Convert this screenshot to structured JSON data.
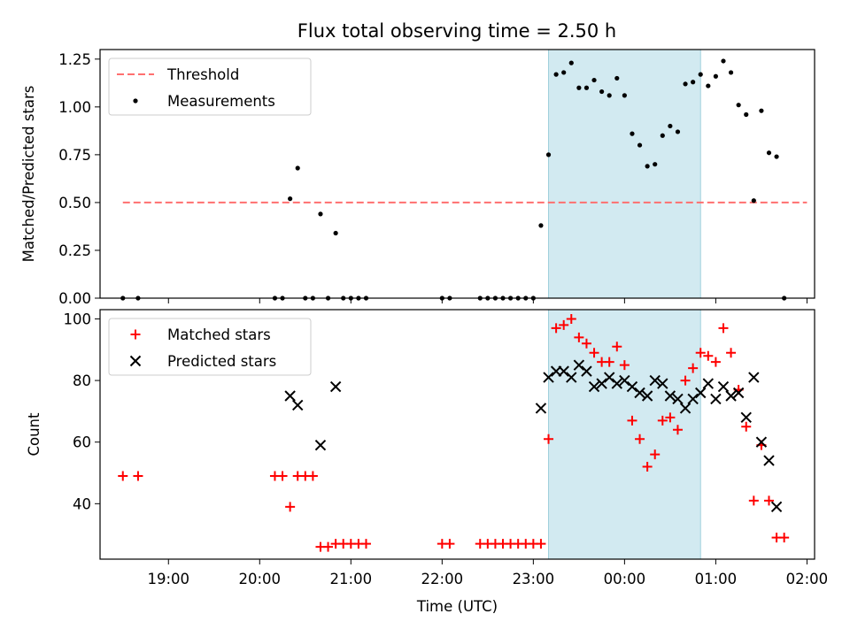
{
  "title": "Flux total observing time = 2.50 h",
  "colors": {
    "threshold": "#ff6f6f",
    "measurements": "#000000",
    "matched": "#ff0000",
    "predicted": "#000000",
    "shade": "#add8e6"
  },
  "chart_data": [
    {
      "type": "scatter",
      "ylabel": "Matched/Predicted stars",
      "xlim": [
        "18:15",
        "02:05"
      ],
      "ylim": [
        0,
        1.3
      ],
      "yticks": [
        "0.00",
        "0.25",
        "0.50",
        "0.75",
        "1.00",
        "1.25"
      ],
      "legend": {
        "position": "upper-left",
        "entries": [
          "Threshold",
          "Measurements"
        ]
      },
      "shaded_region": [
        "23:10",
        "00:50"
      ],
      "threshold": {
        "name": "Threshold",
        "y": 0.5,
        "x_range": [
          "18:30",
          "02:00"
        ]
      },
      "series": [
        {
          "name": "Measurements",
          "points": [
            [
              "18:30",
              0
            ],
            [
              "18:40",
              0
            ],
            [
              "20:10",
              0
            ],
            [
              "20:15",
              0
            ],
            [
              "20:20",
              0.52
            ],
            [
              "20:25",
              0.68
            ],
            [
              "20:30",
              0
            ],
            [
              "20:35",
              0
            ],
            [
              "20:40",
              0.44
            ],
            [
              "20:45",
              0
            ],
            [
              "20:50",
              0.34
            ],
            [
              "20:55",
              0
            ],
            [
              "21:00",
              0
            ],
            [
              "21:05",
              0
            ],
            [
              "21:10",
              0
            ],
            [
              "22:00",
              0
            ],
            [
              "22:05",
              0
            ],
            [
              "22:25",
              0
            ],
            [
              "22:30",
              0
            ],
            [
              "22:35",
              0
            ],
            [
              "22:40",
              0
            ],
            [
              "22:45",
              0
            ],
            [
              "22:50",
              0
            ],
            [
              "22:55",
              0
            ],
            [
              "23:00",
              0
            ],
            [
              "23:05",
              0.38
            ],
            [
              "23:10",
              0.75
            ],
            [
              "23:15",
              1.17
            ],
            [
              "23:20",
              1.18
            ],
            [
              "23:25",
              1.23
            ],
            [
              "23:30",
              1.1
            ],
            [
              "23:35",
              1.1
            ],
            [
              "23:40",
              1.14
            ],
            [
              "23:45",
              1.08
            ],
            [
              "23:50",
              1.06
            ],
            [
              "23:55",
              1.15
            ],
            [
              "00:00",
              1.06
            ],
            [
              "00:05",
              0.86
            ],
            [
              "00:10",
              0.8
            ],
            [
              "00:15",
              0.69
            ],
            [
              "00:20",
              0.7
            ],
            [
              "00:25",
              0.85
            ],
            [
              "00:30",
              0.9
            ],
            [
              "00:35",
              0.87
            ],
            [
              "00:40",
              1.12
            ],
            [
              "00:45",
              1.13
            ],
            [
              "00:50",
              1.17
            ],
            [
              "00:55",
              1.11
            ],
            [
              "01:00",
              1.16
            ],
            [
              "01:05",
              1.24
            ],
            [
              "01:10",
              1.18
            ],
            [
              "01:15",
              1.01
            ],
            [
              "01:20",
              0.96
            ],
            [
              "01:25",
              0.51
            ],
            [
              "01:30",
              0.98
            ],
            [
              "01:35",
              0.76
            ],
            [
              "01:40",
              0.74
            ],
            [
              "01:45",
              0
            ]
          ]
        }
      ]
    },
    {
      "type": "scatter",
      "xlabel": "Time (UTC)",
      "ylabel": "Count",
      "xticks": [
        "19:00",
        "20:00",
        "21:00",
        "22:00",
        "23:00",
        "00:00",
        "01:00",
        "02:00"
      ],
      "ylim": [
        22,
        103
      ],
      "yticks": [
        "40",
        "60",
        "80",
        "100"
      ],
      "legend": {
        "position": "upper-left",
        "entries": [
          "Matched stars",
          "Predicted stars"
        ]
      },
      "shaded_region": [
        "23:10",
        "00:50"
      ],
      "series": [
        {
          "name": "Matched stars",
          "marker": "plus",
          "points": [
            [
              "18:30",
              49
            ],
            [
              "18:40",
              49
            ],
            [
              "20:10",
              49
            ],
            [
              "20:15",
              49
            ],
            [
              "20:20",
              39
            ],
            [
              "20:25",
              49
            ],
            [
              "20:30",
              49
            ],
            [
              "20:35",
              49
            ],
            [
              "20:40",
              26
            ],
            [
              "20:45",
              26
            ],
            [
              "20:50",
              27
            ],
            [
              "20:55",
              27
            ],
            [
              "21:00",
              27
            ],
            [
              "21:05",
              27
            ],
            [
              "21:10",
              27
            ],
            [
              "22:00",
              27
            ],
            [
              "22:05",
              27
            ],
            [
              "22:25",
              27
            ],
            [
              "22:30",
              27
            ],
            [
              "22:35",
              27
            ],
            [
              "22:40",
              27
            ],
            [
              "22:45",
              27
            ],
            [
              "22:50",
              27
            ],
            [
              "22:55",
              27
            ],
            [
              "23:00",
              27
            ],
            [
              "23:05",
              27
            ],
            [
              "23:10",
              61
            ],
            [
              "23:15",
              97
            ],
            [
              "23:20",
              98
            ],
            [
              "23:25",
              100
            ],
            [
              "23:30",
              94
            ],
            [
              "23:35",
              92
            ],
            [
              "23:40",
              89
            ],
            [
              "23:45",
              86
            ],
            [
              "23:50",
              86
            ],
            [
              "23:55",
              91
            ],
            [
              "00:00",
              85
            ],
            [
              "00:05",
              67
            ],
            [
              "00:10",
              61
            ],
            [
              "00:15",
              52
            ],
            [
              "00:20",
              56
            ],
            [
              "00:25",
              67
            ],
            [
              "00:30",
              68
            ],
            [
              "00:35",
              64
            ],
            [
              "00:40",
              80
            ],
            [
              "00:45",
              84
            ],
            [
              "00:50",
              89
            ],
            [
              "00:55",
              88
            ],
            [
              "01:00",
              86
            ],
            [
              "01:05",
              97
            ],
            [
              "01:10",
              89
            ],
            [
              "01:15",
              77
            ],
            [
              "01:20",
              65
            ],
            [
              "01:25",
              41
            ],
            [
              "01:30",
              59
            ],
            [
              "01:35",
              41
            ],
            [
              "01:40",
              29
            ],
            [
              "01:45",
              29
            ]
          ]
        },
        {
          "name": "Predicted stars",
          "marker": "x",
          "points": [
            [
              "20:20",
              75
            ],
            [
              "20:25",
              72
            ],
            [
              "20:40",
              59
            ],
            [
              "20:50",
              78
            ],
            [
              "23:05",
              71
            ],
            [
              "23:10",
              81
            ],
            [
              "23:15",
              83
            ],
            [
              "23:20",
              83
            ],
            [
              "23:25",
              81
            ],
            [
              "23:30",
              85
            ],
            [
              "23:35",
              83
            ],
            [
              "23:40",
              78
            ],
            [
              "23:45",
              79
            ],
            [
              "23:50",
              81
            ],
            [
              "23:55",
              79
            ],
            [
              "00:00",
              80
            ],
            [
              "00:05",
              78
            ],
            [
              "00:10",
              76
            ],
            [
              "00:15",
              75
            ],
            [
              "00:20",
              80
            ],
            [
              "00:25",
              79
            ],
            [
              "00:30",
              75
            ],
            [
              "00:35",
              74
            ],
            [
              "00:40",
              71
            ],
            [
              "00:45",
              74
            ],
            [
              "00:50",
              76
            ],
            [
              "00:55",
              79
            ],
            [
              "01:00",
              74
            ],
            [
              "01:05",
              78
            ],
            [
              "01:10",
              75
            ],
            [
              "01:15",
              76
            ],
            [
              "01:20",
              68
            ],
            [
              "01:25",
              81
            ],
            [
              "01:30",
              60
            ],
            [
              "01:35",
              54
            ],
            [
              "01:40",
              39
            ]
          ]
        }
      ]
    }
  ]
}
